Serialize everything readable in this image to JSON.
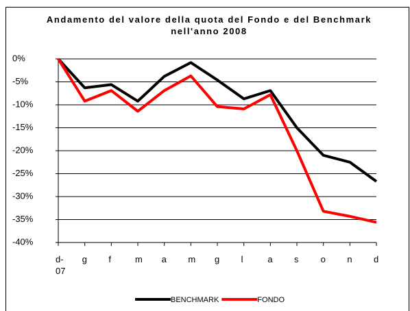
{
  "chart_data": {
    "type": "line",
    "title": "Andamento del valore della quota del Fondo e del Benchmark nell'anno 2008",
    "categories": [
      "d-07",
      "g",
      "f",
      "m",
      "a",
      "m",
      "g",
      "l",
      "a",
      "s",
      "o",
      "n",
      "d"
    ],
    "series": [
      {
        "name": "BENCHMARK",
        "color": "#000000",
        "values": [
          0,
          -6.3,
          -5.6,
          -9.2,
          -3.8,
          -0.8,
          -4.6,
          -8.7,
          -6.9,
          -15,
          -21,
          -22.5,
          -26.7
        ]
      },
      {
        "name": "FONDO",
        "color": "#ff0000",
        "values": [
          0,
          -9.2,
          -6.9,
          -11.4,
          -6.9,
          -3.7,
          -10.4,
          -10.9,
          -7.8,
          -20,
          -33.2,
          -34.3,
          -35.6
        ]
      }
    ],
    "ylim": [
      -40,
      0
    ],
    "yticks": [
      {
        "value": 0,
        "label": "0%"
      },
      {
        "value": -5,
        "label": "-5%"
      },
      {
        "value": -10,
        "label": "-10%"
      },
      {
        "value": -15,
        "label": "-15%"
      },
      {
        "value": -20,
        "label": "-20%"
      },
      {
        "value": -25,
        "label": "-25%"
      },
      {
        "value": -30,
        "label": "-30%"
      },
      {
        "value": -35,
        "label": "-35%"
      },
      {
        "value": -40,
        "label": "-40%"
      }
    ],
    "grid": true,
    "legend": "bottom"
  }
}
